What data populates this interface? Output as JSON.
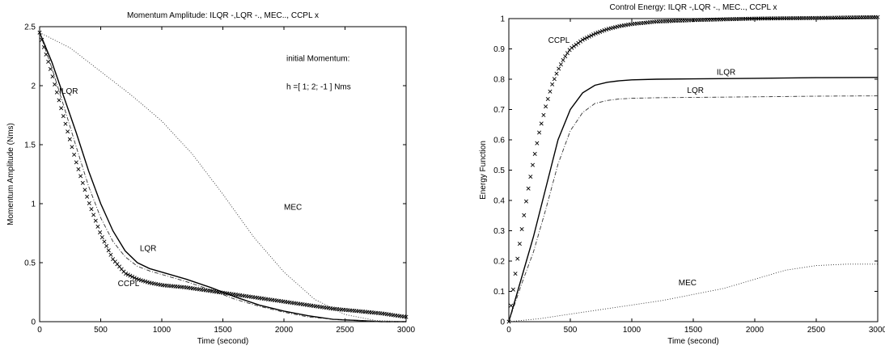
{
  "chart_data": [
    {
      "type": "line",
      "title": "Momentum Amplitude: ILQR -,LQR -., MEC.., CCPL x",
      "xlabel": "Time (second)",
      "ylabel": "Momentum Amplitude (Nms)",
      "xlim": [
        0,
        3000
      ],
      "ylim": [
        0,
        2.5
      ],
      "xticks": [
        0,
        500,
        1000,
        1500,
        2000,
        2500,
        3000
      ],
      "yticks": [
        0,
        0.5,
        1,
        1.5,
        2,
        2.5
      ],
      "grid": false,
      "notes": [
        "initial Momentum:",
        "h =[ 1; 2; -1 ] Nms"
      ],
      "series": [
        {
          "name": "ILQR",
          "style": "solid",
          "x": [
            0,
            100,
            200,
            300,
            400,
            500,
            600,
            700,
            800,
            900,
            1000,
            1200,
            1400,
            1600,
            1800,
            2000,
            2200,
            2400,
            2600,
            2800,
            3000
          ],
          "y": [
            2.45,
            2.2,
            1.9,
            1.6,
            1.28,
            1.0,
            0.77,
            0.6,
            0.5,
            0.45,
            0.42,
            0.36,
            0.29,
            0.21,
            0.14,
            0.09,
            0.05,
            0.02,
            0.01,
            0.0,
            0.0
          ]
        },
        {
          "name": "LQR",
          "style": "dashdot",
          "x": [
            0,
            100,
            200,
            300,
            400,
            500,
            600,
            700,
            800,
            900,
            1000,
            1200,
            1400,
            1600,
            1800,
            2000,
            2200,
            2400,
            2600,
            2800,
            3000
          ],
          "y": [
            2.45,
            2.15,
            1.82,
            1.48,
            1.15,
            0.88,
            0.68,
            0.55,
            0.47,
            0.43,
            0.4,
            0.34,
            0.27,
            0.19,
            0.13,
            0.08,
            0.04,
            0.02,
            0.01,
            0.0,
            0.0
          ]
        },
        {
          "name": "MEC",
          "style": "dotted",
          "x": [
            0,
            250,
            500,
            750,
            1000,
            1250,
            1500,
            1750,
            2000,
            2250,
            2500,
            2750,
            3000
          ],
          "y": [
            2.45,
            2.32,
            2.12,
            1.92,
            1.7,
            1.42,
            1.08,
            0.72,
            0.42,
            0.19,
            0.06,
            0.01,
            0.0
          ]
        },
        {
          "name": "CCPL",
          "style": "cross",
          "x": [
            0,
            100,
            200,
            300,
            400,
            500,
            600,
            700,
            800,
            900,
            1000,
            1200,
            1400,
            1600,
            1800,
            2000,
            2200,
            2400,
            2600,
            2800,
            3000
          ],
          "y": [
            2.45,
            2.1,
            1.72,
            1.35,
            1.02,
            0.74,
            0.53,
            0.41,
            0.36,
            0.33,
            0.31,
            0.29,
            0.26,
            0.23,
            0.2,
            0.17,
            0.14,
            0.11,
            0.09,
            0.07,
            0.04
          ]
        }
      ],
      "labels": [
        {
          "text": "ILQR",
          "x": 160,
          "y": 1.93
        },
        {
          "text": "LQR",
          "x": 820,
          "y": 0.6
        },
        {
          "text": "MEC",
          "x": 2000,
          "y": 0.95
        },
        {
          "text": "CCPL",
          "x": 640,
          "y": 0.3
        }
      ]
    },
    {
      "type": "line",
      "title": "Control Energy: ILQR -,LQR -., MEC.., CCPL x",
      "xlabel": "Time (second)",
      "ylabel": "Energy Function",
      "xlim": [
        0,
        3000
      ],
      "ylim": [
        0,
        1
      ],
      "xticks": [
        0,
        500,
        1000,
        1500,
        2000,
        2500,
        3000
      ],
      "yticks": [
        0,
        0.1,
        0.2,
        0.3,
        0.4,
        0.5,
        0.6,
        0.7,
        0.8,
        0.9,
        1
      ],
      "grid": false,
      "series": [
        {
          "name": "ILQR",
          "style": "solid",
          "x": [
            0,
            100,
            200,
            300,
            400,
            500,
            600,
            700,
            800,
            900,
            1000,
            1200,
            1500,
            2000,
            2500,
            3000
          ],
          "y": [
            0.0,
            0.14,
            0.28,
            0.44,
            0.6,
            0.7,
            0.755,
            0.78,
            0.79,
            0.795,
            0.798,
            0.8,
            0.801,
            0.803,
            0.805,
            0.806
          ]
        },
        {
          "name": "LQR",
          "style": "dashdot",
          "x": [
            0,
            100,
            200,
            300,
            400,
            500,
            600,
            700,
            800,
            900,
            1000,
            1200,
            1500,
            2000,
            2500,
            3000
          ],
          "y": [
            0.0,
            0.12,
            0.23,
            0.37,
            0.52,
            0.63,
            0.69,
            0.72,
            0.73,
            0.735,
            0.737,
            0.739,
            0.74,
            0.742,
            0.744,
            0.745
          ]
        },
        {
          "name": "MEC",
          "style": "dotted",
          "x": [
            0,
            250,
            500,
            750,
            1000,
            1250,
            1500,
            1750,
            2000,
            2250,
            2500,
            2750,
            3000
          ],
          "y": [
            0.0,
            0.01,
            0.025,
            0.04,
            0.055,
            0.07,
            0.09,
            0.11,
            0.14,
            0.17,
            0.185,
            0.19,
            0.19
          ]
        },
        {
          "name": "CCPL",
          "style": "cross",
          "x": [
            0,
            50,
            100,
            150,
            200,
            250,
            300,
            350,
            400,
            450,
            500,
            600,
            700,
            800,
            900,
            1000,
            1200,
            1500,
            2000,
            2500,
            3000
          ],
          "y": [
            0.0,
            0.15,
            0.29,
            0.42,
            0.53,
            0.63,
            0.71,
            0.78,
            0.83,
            0.87,
            0.9,
            0.93,
            0.95,
            0.965,
            0.975,
            0.982,
            0.99,
            0.995,
            1.0,
            1.002,
            1.005
          ]
        }
      ],
      "labels": [
        {
          "text": "CCPL",
          "x": 320,
          "y": 0.92
        },
        {
          "text": "ILQR",
          "x": 1690,
          "y": 0.815
        },
        {
          "text": "LQR",
          "x": 1450,
          "y": 0.755
        },
        {
          "text": "MEC",
          "x": 1380,
          "y": 0.12
        }
      ]
    }
  ]
}
